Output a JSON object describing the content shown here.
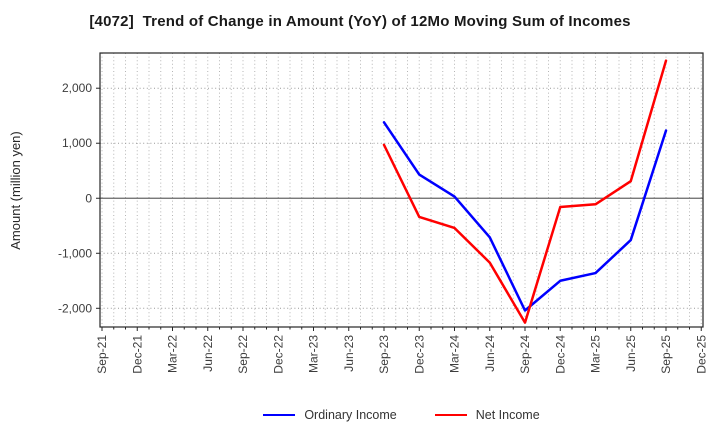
{
  "title": "[4072]  Trend of Change in Amount (YoY) of 12Mo Moving Sum of Incomes",
  "colors": {
    "background": "#ffffff",
    "grid_minor": "#b5b5b5",
    "grid_major": "#999999",
    "zero_line": "#666666",
    "border": "#262626",
    "tick_text": "#3d3d3d",
    "title_text": "#1a1a1a",
    "legend_text": "#333333",
    "ordinary_income": "#0000ff",
    "net_income": "#ff0000"
  },
  "chart_data": {
    "type": "line",
    "title": "[4072]  Trend of Change in Amount (YoY) of 12Mo Moving Sum of Incomes",
    "xlabel": "",
    "ylabel": "Amount (million yen)",
    "ylim": [
      -2340,
      2640
    ],
    "grid": "dotted vertical line per month, dotted horizontal lines at thousands, solid line at zero",
    "legend_position": "bottom-center",
    "x_tick_labels": [
      "Sep-21",
      "Dec-21",
      "Mar-22",
      "Jun-22",
      "Sep-22",
      "Dec-22",
      "Mar-23",
      "Jun-23",
      "Sep-23",
      "Dec-23",
      "Mar-24",
      "Jun-24",
      "Sep-24",
      "Dec-24",
      "Mar-25",
      "Jun-25",
      "Sep-25",
      "Dec-25"
    ],
    "months_per_tick": 3,
    "total_months": 52,
    "y_ticks": [
      {
        "value": 2000,
        "label": "2,000"
      },
      {
        "value": 1000,
        "label": "1,000"
      },
      {
        "value": 0,
        "label": "0"
      },
      {
        "value": -1000,
        "label": "-1,000"
      },
      {
        "value": -2000,
        "label": "-2,000"
      }
    ],
    "series": [
      {
        "name": "Ordinary Income",
        "color": "#0000ff",
        "x_labels": [
          "Sep-23",
          "Dec-23",
          "Mar-24",
          "Jun-24",
          "Sep-24",
          "Dec-24",
          "Mar-25",
          "Jun-25",
          "Sep-25"
        ],
        "x_months": [
          24,
          27,
          30,
          33,
          36,
          39,
          42,
          45,
          48
        ],
        "values": [
          1380,
          430,
          30,
          -710,
          -2040,
          -1500,
          -1360,
          -760,
          1230
        ]
      },
      {
        "name": "Net Income",
        "color": "#ff0000",
        "x_labels": [
          "Sep-23",
          "Dec-23",
          "Mar-24",
          "Jun-24",
          "Sep-24",
          "Dec-24",
          "Mar-25",
          "Jun-25",
          "Sep-25"
        ],
        "x_months": [
          24,
          27,
          30,
          33,
          36,
          39,
          42,
          45,
          48
        ],
        "values": [
          970,
          -340,
          -540,
          -1170,
          -2260,
          -160,
          -110,
          310,
          2500
        ]
      }
    ]
  }
}
